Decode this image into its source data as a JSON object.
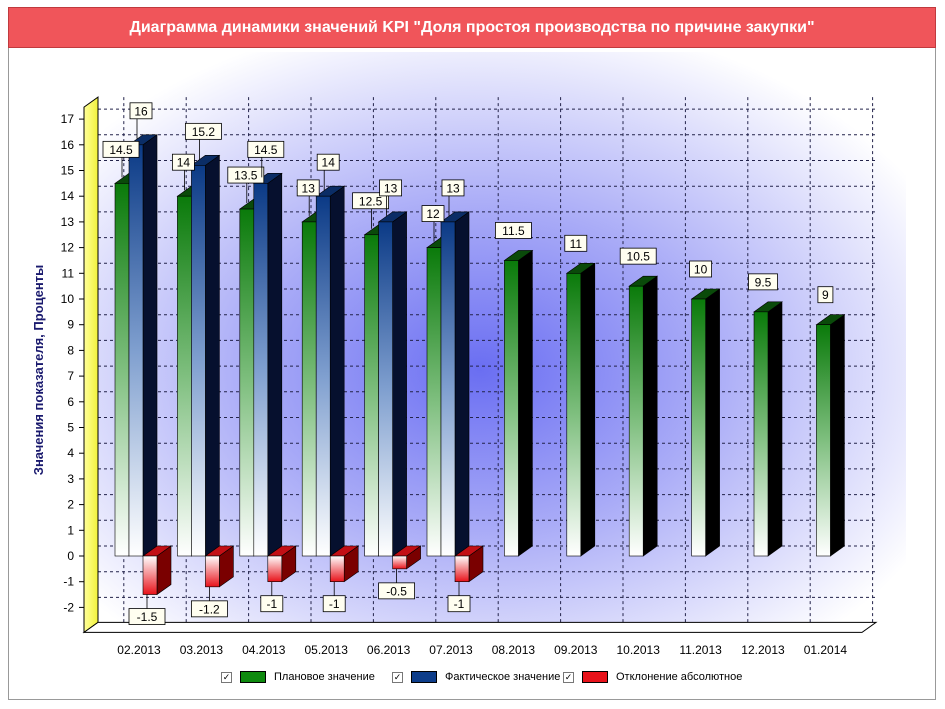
{
  "title": "Диаграмма динамики значений KPI \"Доля простоя производства по причине закупки\"",
  "legend": {
    "check_mark": "✓",
    "items": [
      {
        "label": "Плановое значение",
        "color": "#0e8a0e"
      },
      {
        "label": "Фактическое значение",
        "color": "#0d3d8a"
      },
      {
        "label": "Отклонение абсолютное",
        "color": "#e8121a"
      }
    ]
  },
  "chart_data": {
    "type": "bar",
    "title": "Диаграмма динамики значений KPI \"Доля простоя производства по причине закупки\"",
    "xlabel": "",
    "ylabel": "Значения показателя, Проценты",
    "ylim": [
      -2,
      17
    ],
    "yticks": [
      17,
      16,
      15,
      14,
      13,
      12,
      11,
      10,
      9,
      8,
      7,
      6,
      5,
      4,
      3,
      2,
      1,
      0,
      -1,
      -2
    ],
    "categories": [
      "02.2013",
      "03.2013",
      "04.2013",
      "05.2013",
      "06.2013",
      "07.2013",
      "08.2013",
      "09.2013",
      "10.2013",
      "11.2013",
      "12.2013",
      "01.2014"
    ],
    "series": [
      {
        "name": "Плановое значение",
        "color": "#0e8a0e",
        "values": [
          14.5,
          14,
          13.5,
          13,
          12.5,
          12,
          11.5,
          11,
          10.5,
          10,
          9.5,
          9
        ]
      },
      {
        "name": "Фактическое значение",
        "color": "#0d3d8a",
        "values": [
          16,
          15.2,
          14.5,
          14,
          13,
          13,
          null,
          null,
          null,
          null,
          null,
          null
        ]
      },
      {
        "name": "Отклонение абсолютное",
        "color": "#e8121a",
        "values": [
          -1.5,
          -1.2,
          -1,
          -1,
          -0.5,
          -1,
          null,
          null,
          null,
          null,
          null,
          null
        ]
      }
    ],
    "grid": true,
    "legend_position": "bottom"
  }
}
